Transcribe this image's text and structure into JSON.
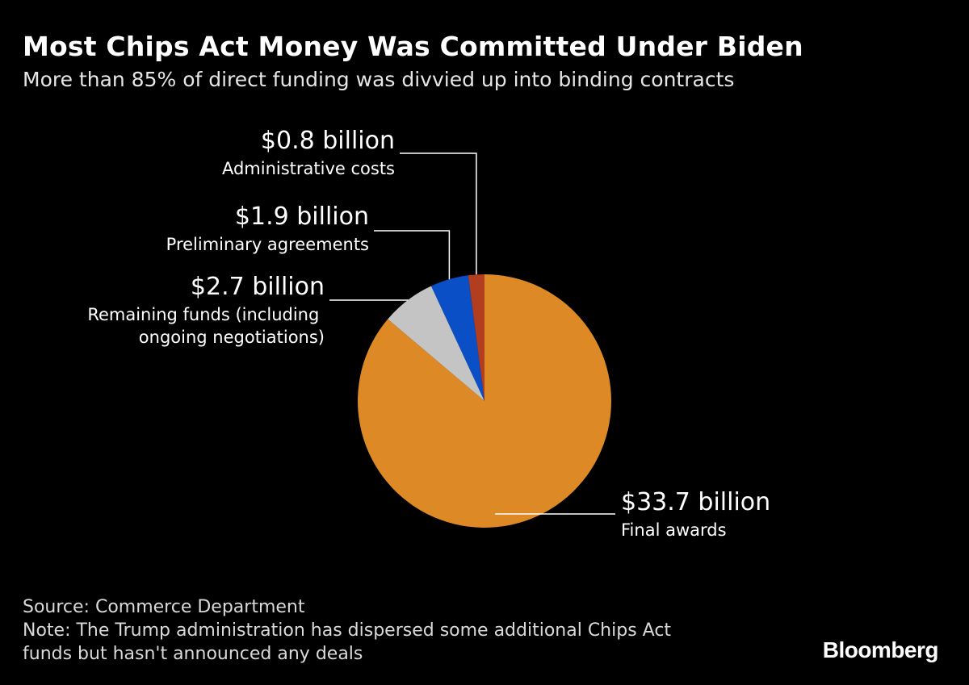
{
  "title": "Most Chips Act Money Was Committed Under Biden",
  "subtitle": "More than 85% of direct funding was divvied up into binding contracts",
  "chart_data": {
    "type": "pie",
    "unit": "billion USD",
    "start": "top, clockwise",
    "slices": [
      {
        "label": "Final awards",
        "value": 33.7,
        "value_label": "$33.7 billion",
        "color": "#DD8A26"
      },
      {
        "label": "Remaining funds (including ongoing negotiations)",
        "value": 2.7,
        "value_label": "$2.7 billion",
        "color": "#C4C4C4"
      },
      {
        "label": "Preliminary agreements",
        "value": 1.9,
        "value_label": "$1.9 billion",
        "color": "#0B4FC7"
      },
      {
        "label": "Administrative costs",
        "value": 0.8,
        "value_label": "$0.8 billion",
        "color": "#B33D1F"
      }
    ]
  },
  "footer": {
    "source": "Source: Commerce Department",
    "note_line1": "Note: The Trump administration has dispersed some additional Chips Act",
    "note_line2": "funds but hasn't announced any deals"
  },
  "brand": "Bloomberg"
}
